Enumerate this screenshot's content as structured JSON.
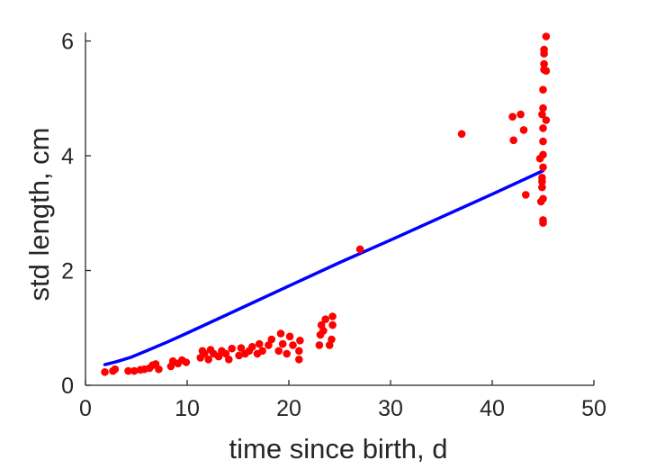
{
  "chart_data": {
    "type": "scatter",
    "xlabel": "time since birth, d",
    "ylabel": "std length, cm",
    "xlim": [
      0,
      50
    ],
    "ylim": [
      0,
      6.15
    ],
    "x_ticks": [
      0,
      10,
      20,
      30,
      40,
      50
    ],
    "y_ticks": [
      0,
      2,
      4,
      6
    ],
    "grid": false,
    "box": false,
    "colors": {
      "points": "#ff0000",
      "fit_line": "#0000ff",
      "axes": "#262626"
    },
    "series": [
      {
        "type": "scatter",
        "points": [
          [
            1.9,
            0.23
          ],
          [
            2.7,
            0.25
          ],
          [
            2.9,
            0.28
          ],
          [
            4.2,
            0.25
          ],
          [
            4.8,
            0.25
          ],
          [
            5.4,
            0.27
          ],
          [
            5.8,
            0.28
          ],
          [
            6.3,
            0.3
          ],
          [
            6.6,
            0.35
          ],
          [
            6.9,
            0.37
          ],
          [
            7.2,
            0.28
          ],
          [
            8.4,
            0.33
          ],
          [
            8.6,
            0.42
          ],
          [
            9.1,
            0.38
          ],
          [
            9.5,
            0.44
          ],
          [
            9.9,
            0.4
          ],
          [
            11.3,
            0.48
          ],
          [
            11.5,
            0.6
          ],
          [
            11.7,
            0.55
          ],
          [
            12.1,
            0.45
          ],
          [
            12.3,
            0.62
          ],
          [
            12.6,
            0.55
          ],
          [
            13.1,
            0.5
          ],
          [
            13.4,
            0.6
          ],
          [
            13.8,
            0.55
          ],
          [
            14.1,
            0.45
          ],
          [
            14.4,
            0.64
          ],
          [
            15.1,
            0.52
          ],
          [
            15.3,
            0.65
          ],
          [
            15.7,
            0.55
          ],
          [
            16.1,
            0.6
          ],
          [
            16.4,
            0.67
          ],
          [
            16.9,
            0.55
          ],
          [
            17.1,
            0.72
          ],
          [
            17.4,
            0.6
          ],
          [
            18.0,
            0.7
          ],
          [
            18.3,
            0.8
          ],
          [
            19.0,
            0.6
          ],
          [
            19.2,
            0.9
          ],
          [
            19.4,
            0.72
          ],
          [
            19.8,
            0.55
          ],
          [
            20.1,
            0.85
          ],
          [
            20.4,
            0.7
          ],
          [
            21.0,
            0.45
          ],
          [
            21.0,
            0.6
          ],
          [
            21.1,
            0.78
          ],
          [
            23.0,
            0.7
          ],
          [
            23.1,
            0.88
          ],
          [
            23.2,
            1.05
          ],
          [
            23.4,
            0.95
          ],
          [
            23.6,
            1.15
          ],
          [
            24.0,
            0.7
          ],
          [
            24.2,
            0.8
          ],
          [
            24.3,
            1.05
          ],
          [
            24.3,
            1.2
          ],
          [
            27.0,
            2.37
          ],
          [
            37.0,
            4.38
          ],
          [
            42.0,
            4.68
          ],
          [
            42.1,
            4.27
          ],
          [
            42.8,
            4.72
          ],
          [
            43.1,
            4.45
          ],
          [
            43.3,
            3.32
          ],
          [
            44.7,
            3.95
          ],
          [
            44.8,
            3.2
          ],
          [
            44.9,
            3.45
          ],
          [
            44.9,
            3.55
          ],
          [
            44.9,
            3.62
          ],
          [
            45.0,
            3.8
          ],
          [
            45.0,
            4.02
          ],
          [
            45.0,
            3.25
          ],
          [
            45.0,
            2.83
          ],
          [
            45.0,
            2.88
          ],
          [
            44.9,
            4.72
          ],
          [
            45.0,
            4.83
          ],
          [
            45.0,
            4.48
          ],
          [
            45.0,
            4.25
          ],
          [
            45.0,
            5.15
          ],
          [
            45.1,
            5.5
          ],
          [
            45.1,
            5.6
          ],
          [
            45.1,
            5.78
          ],
          [
            45.1,
            5.85
          ],
          [
            45.3,
            4.62
          ],
          [
            45.3,
            6.08
          ],
          [
            45.3,
            5.48
          ]
        ]
      },
      {
        "type": "line",
        "points": [
          [
            1.9,
            0.36
          ],
          [
            3.0,
            0.41
          ],
          [
            4.5,
            0.49
          ],
          [
            6.0,
            0.6
          ],
          [
            8.0,
            0.75
          ],
          [
            10.0,
            0.91
          ],
          [
            15.0,
            1.32
          ],
          [
            20.0,
            1.73
          ],
          [
            25.0,
            2.14
          ],
          [
            30.0,
            2.53
          ],
          [
            35.0,
            2.93
          ],
          [
            40.0,
            3.33
          ],
          [
            45.0,
            3.74
          ]
        ]
      }
    ]
  }
}
